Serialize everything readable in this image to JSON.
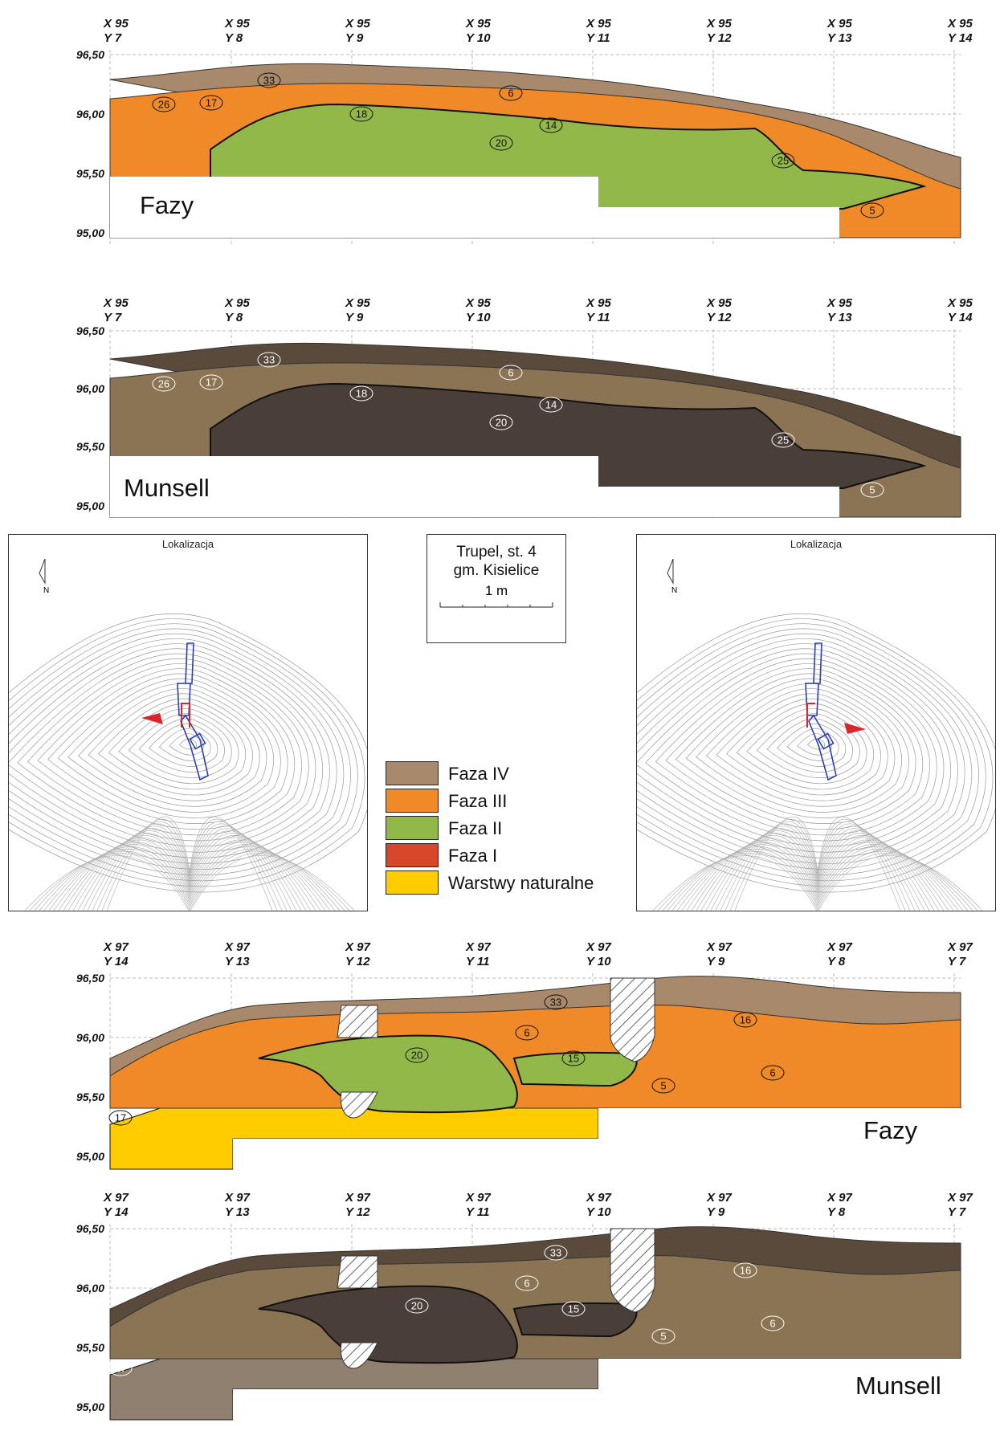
{
  "sections": [
    {
      "id": "p1",
      "title": "Fazy",
      "x_line": "X 95",
      "y_labels": [
        "Y 7",
        "Y 8",
        "Y 9",
        "Y 10",
        "Y 11",
        "Y 12",
        "Y 13",
        "Y 14"
      ],
      "scheme": "fazy"
    },
    {
      "id": "p2",
      "title": "Munsell",
      "x_line": "X 95",
      "y_labels": [
        "Y 7",
        "Y 8",
        "Y 9",
        "Y 10",
        "Y 11",
        "Y 12",
        "Y 13",
        "Y 14"
      ],
      "scheme": "munsell"
    },
    {
      "id": "p3",
      "title": "Fazy",
      "x_line": "X 97",
      "y_labels": [
        "Y 14",
        "Y 13",
        "Y 12",
        "Y 11",
        "Y 10",
        "Y 9",
        "Y 8",
        "Y 7"
      ],
      "scheme": "fazy"
    },
    {
      "id": "p4",
      "title": "Munsell",
      "x_line": "X 97",
      "y_labels": [
        "Y 14",
        "Y 13",
        "Y 12",
        "Y 11",
        "Y 10",
        "Y 9",
        "Y 8",
        "Y 7"
      ],
      "scheme": "munsell"
    }
  ],
  "elevations": [
    "96,50",
    "96,00",
    "95,50",
    "95,00"
  ],
  "layer_numbers": {
    "p1": [
      "33",
      "26",
      "17",
      "6",
      "18",
      "14",
      "20",
      "25",
      "5"
    ],
    "p3": [
      "33",
      "16",
      "6",
      "20",
      "15",
      "5",
      "6",
      "17"
    ]
  },
  "site": {
    "line1": "Trupel, st. 4",
    "line2": "gm. Kisielice",
    "scale": "1 m"
  },
  "maps": [
    {
      "title": "Lokalizacja",
      "north": "N"
    },
    {
      "title": "Lokalizacja",
      "north": "N"
    }
  ],
  "legend": [
    {
      "label": "Faza IV",
      "color": "#a8896b"
    },
    {
      "label": "Faza III",
      "color": "#f08a28"
    },
    {
      "label": "Faza II",
      "color": "#93b84a"
    },
    {
      "label": "Faza I",
      "color": "#d9472b"
    },
    {
      "label": "Warstwy naturalne",
      "color": "#ffcc00"
    }
  ],
  "colors": {
    "fazy": {
      "top": "#a8896b",
      "mid": "#f08a28",
      "core": "#93b84a",
      "base": "#ffcc00"
    },
    "munsell": {
      "top": "#5a4a3b",
      "mid": "#8a7453",
      "core": "#4a3f38",
      "base": "#8f8070"
    }
  }
}
